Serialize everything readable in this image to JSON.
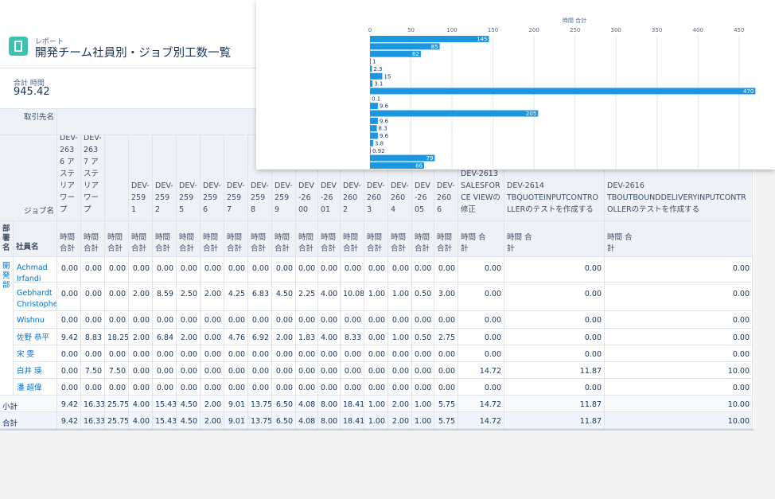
{
  "header": {
    "object_type": "レポート",
    "title": "開発チーム社員別・ジョブ別工数一覧"
  },
  "summary": {
    "label": "合計 時間",
    "value": "945.42"
  },
  "table": {
    "row_header_labels": {
      "account": "取引先名",
      "job": "ジョブ名",
      "department": "部署名",
      "employee": "社員名"
    },
    "columns": [
      {
        "job": "DEV-2636 アステリアワープ",
        "measure": "時間 合計"
      },
      {
        "job": "DEV-2637 アステリアワープ",
        "measure": "時間 合計"
      },
      {
        "job": null,
        "measure": "時間 合計"
      },
      {
        "job": "DEV-2591",
        "measure": "時間 合計"
      },
      {
        "job": "DEV-2592",
        "measure": "時間 合計"
      },
      {
        "job": "DEV-2595",
        "measure": "時間 合計"
      },
      {
        "job": "DEV-2596",
        "measure": "時間 合計"
      },
      {
        "job": "DEV-2597",
        "measure": "時間 合計"
      },
      {
        "job": "DEV-2598",
        "measure": "時間 合計"
      },
      {
        "job": "DEV-2599",
        "measure": "時間 合計"
      },
      {
        "job": "DEV-2600",
        "measure": "時間 合計"
      },
      {
        "job": "DEV-2601",
        "measure": "時間 合計"
      },
      {
        "job": "DEV-2602",
        "measure": "時間 合計"
      },
      {
        "job": "DEV-2603",
        "measure": "時間 合計"
      },
      {
        "job": "DEV-2604",
        "measure": "時間 合計"
      },
      {
        "job": "DEV-2605",
        "measure": "時間 合計"
      },
      {
        "job": "DEV-2606",
        "measure": "時間 合計"
      },
      {
        "job": "DEV-2613 SALESFORCE VIEWの修正",
        "measure": "時間 合計"
      },
      {
        "job": "DEV-2614 TBQUOTEINPUTCONTROLLERのテストを作成する",
        "measure": "時間 合計"
      },
      {
        "job": "DEV-2616 TBOUTBOUNDDELIVERYINPUTCONTROLLERのテストを作成する",
        "measure": "時間 合計"
      }
    ],
    "department": "開発部",
    "rows": [
      {
        "employee": "Achmad Irfandi",
        "values": [
          "0.00",
          "0.00",
          "0.00",
          "0.00",
          "0.00",
          "0.00",
          "0.00",
          "0.00",
          "0.00",
          "0.00",
          "0.00",
          "0.00",
          "0.00",
          "0.00",
          "0.00",
          "0.00",
          "0.00",
          "0.00",
          "0.00",
          "0.00"
        ]
      },
      {
        "employee": "Gebhardt Christopher",
        "values": [
          "0.00",
          "0.00",
          "0.00",
          "2.00",
          "8.59",
          "2.50",
          "2.00",
          "4.25",
          "6.83",
          "4.50",
          "2.25",
          "4.00",
          "10.08",
          "1.00",
          "1.00",
          "0.50",
          "3.00",
          "0.00",
          "0.00",
          "0.00"
        ]
      },
      {
        "employee": "Wishnu",
        "values": [
          "0.00",
          "0.00",
          "0.00",
          "0.00",
          "0.00",
          "0.00",
          "0.00",
          "0.00",
          "0.00",
          "0.00",
          "0.00",
          "0.00",
          "0.00",
          "0.00",
          "0.00",
          "0.00",
          "0.00",
          "0.00",
          "0.00",
          "0.00"
        ]
      },
      {
        "employee": "佐野 恭平",
        "values": [
          "9.42",
          "8.83",
          "18.25",
          "2.00",
          "6.84",
          "2.00",
          "0.00",
          "4.76",
          "6.92",
          "2.00",
          "1.83",
          "4.00",
          "8.33",
          "0.00",
          "1.00",
          "0.50",
          "2.75",
          "0.00",
          "0.00",
          "0.00"
        ]
      },
      {
        "employee": "宋 雯",
        "values": [
          "0.00",
          "0.00",
          "0.00",
          "0.00",
          "0.00",
          "0.00",
          "0.00",
          "0.00",
          "0.00",
          "0.00",
          "0.00",
          "0.00",
          "0.00",
          "0.00",
          "0.00",
          "0.00",
          "0.00",
          "0.00",
          "0.00",
          "0.00"
        ]
      },
      {
        "employee": "白井 瑛",
        "values": [
          "0.00",
          "7.50",
          "7.50",
          "0.00",
          "0.00",
          "0.00",
          "0.00",
          "0.00",
          "0.00",
          "0.00",
          "0.00",
          "0.00",
          "0.00",
          "0.00",
          "0.00",
          "0.00",
          "0.00",
          "14.72",
          "11.87",
          "10.00"
        ]
      },
      {
        "employee": "潘 超偉",
        "values": [
          "0.00",
          "0.00",
          "0.00",
          "0.00",
          "0.00",
          "0.00",
          "0.00",
          "0.00",
          "0.00",
          "0.00",
          "0.00",
          "0.00",
          "0.00",
          "0.00",
          "0.00",
          "0.00",
          "0.00",
          "0.00",
          "0.00",
          "0.00"
        ]
      }
    ],
    "subtotal": {
      "label": "小計",
      "values": [
        "9.42",
        "16.33",
        "25.75",
        "4.00",
        "15.43",
        "4.50",
        "2.00",
        "9.01",
        "13.75",
        "6.50",
        "4.08",
        "8.00",
        "18.41",
        "1.00",
        "2.00",
        "1.00",
        "5.75",
        "14.72",
        "11.87",
        "10.00"
      ]
    },
    "total": {
      "label": "合計",
      "values": [
        "9.42",
        "16.33",
        "25.75",
        "4.00",
        "15.43",
        "4.50",
        "2.00",
        "9.01",
        "13.75",
        "6.50",
        "4.08",
        "8.00",
        "18.41",
        "1.00",
        "2.00",
        "1.00",
        "5.75",
        "14.72",
        "11.87",
        "10.00"
      ]
    }
  },
  "chart_data": {
    "type": "bar",
    "orientation": "horizontal",
    "title": "時間 合計",
    "categories": [
      null,
      null,
      null,
      null,
      null,
      null,
      null,
      null,
      null,
      null,
      null,
      null,
      null,
      null,
      null,
      null,
      null,
      null
    ],
    "values": [
      145,
      85,
      62,
      1,
      2.3,
      15,
      3.1,
      470,
      0.1,
      9.6,
      205,
      9.6,
      8.3,
      9.6,
      3.8,
      0.92,
      79,
      66
    ],
    "color": "#1b96e0",
    "xlim": [
      0,
      490
    ],
    "xticks": [
      0,
      50,
      100,
      150,
      200,
      250,
      300,
      350,
      400,
      450
    ],
    "grid": true
  }
}
